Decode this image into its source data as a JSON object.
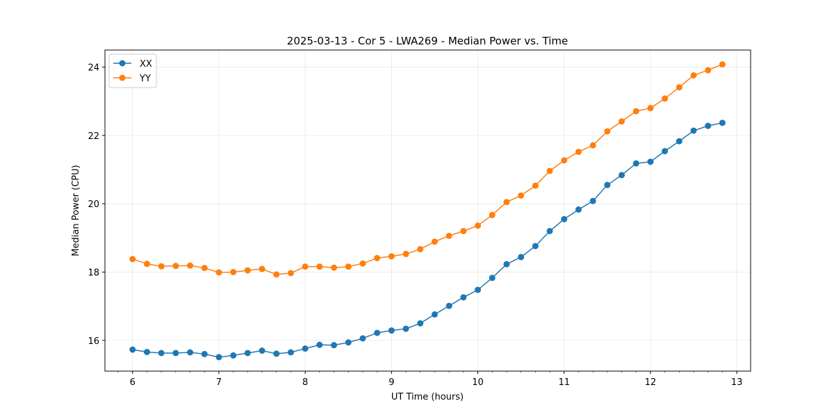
{
  "chart_data": {
    "type": "line",
    "title": "2025-03-13 - Cor 5 - LWA269 - Median Power vs. Time",
    "xlabel": "UT Time (hours)",
    "ylabel": "Median Power (CPU)",
    "xlim": [
      5.68,
      13.16
    ],
    "ylim": [
      15.1,
      24.5
    ],
    "xticks": [
      6,
      7,
      8,
      9,
      10,
      11,
      12,
      13
    ],
    "yticks": [
      16,
      18,
      20,
      22,
      24
    ],
    "grid": true,
    "legend_position": "top-left",
    "x": [
      6.0,
      6.1667,
      6.3333,
      6.5,
      6.6667,
      6.8333,
      7.0,
      7.1667,
      7.3333,
      7.5,
      7.6667,
      7.8333,
      8.0,
      8.1667,
      8.3333,
      8.5,
      8.6667,
      8.8333,
      9.0,
      9.1667,
      9.3333,
      9.5,
      9.6667,
      9.8333,
      10.0,
      10.1667,
      10.3333,
      10.5,
      10.6667,
      10.8333,
      11.0,
      11.1667,
      11.3333,
      11.5,
      11.6667,
      11.8333,
      12.0,
      12.1667,
      12.3333,
      12.5,
      12.6667,
      12.8333
    ],
    "series": [
      {
        "name": "XX",
        "color": "#1f77b4",
        "values": [
          15.73,
          15.66,
          15.63,
          15.63,
          15.65,
          15.6,
          15.51,
          15.56,
          15.63,
          15.7,
          15.61,
          15.65,
          15.76,
          15.87,
          15.86,
          15.94,
          16.06,
          16.22,
          16.29,
          16.34,
          16.5,
          16.76,
          17.01,
          17.26,
          17.48,
          17.83,
          18.23,
          18.44,
          18.76,
          19.2,
          19.55,
          19.83,
          20.08,
          20.55,
          20.84,
          21.18,
          21.23,
          21.54,
          21.83,
          22.14,
          22.28,
          22.37
        ]
      },
      {
        "name": "YY",
        "color": "#ff7f0e",
        "values": [
          18.38,
          18.24,
          18.17,
          18.18,
          18.19,
          18.12,
          17.99,
          18.0,
          18.05,
          18.09,
          17.93,
          17.97,
          18.16,
          18.16,
          18.13,
          18.16,
          18.25,
          18.41,
          18.46,
          18.53,
          18.67,
          18.89,
          19.06,
          19.2,
          19.36,
          19.67,
          20.05,
          20.24,
          20.53,
          20.96,
          21.27,
          21.52,
          21.71,
          22.12,
          22.41,
          22.71,
          22.8,
          23.08,
          23.41,
          23.76,
          23.91,
          24.08
        ]
      }
    ]
  }
}
